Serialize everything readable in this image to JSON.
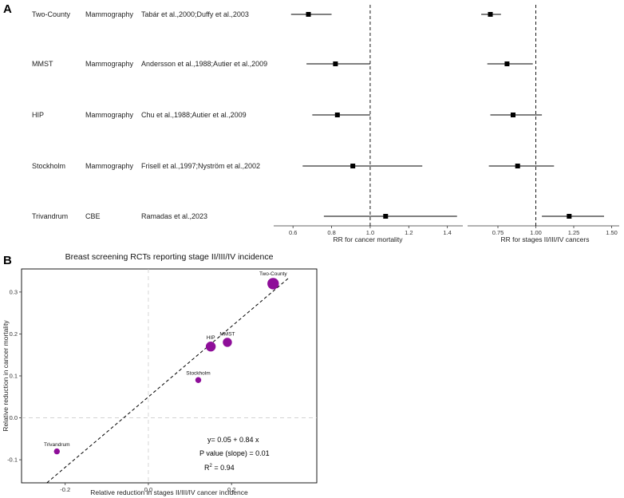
{
  "panel_a_label": "A",
  "panel_b_label": "B",
  "chart_data": [
    {
      "type": "forest",
      "rows": [
        {
          "trial": "Two-County",
          "method": "Mammography",
          "refs": "Tabár et al.,2000;Duffy et al.,2003",
          "rr": 0.68,
          "lo": 0.59,
          "hi": 0.8
        },
        {
          "trial": "MMST",
          "method": "Mammography",
          "refs": "Andersson et al.,1988;Autier et al.,2009",
          "rr": 0.82,
          "lo": 0.67,
          "hi": 1.0
        },
        {
          "trial": "HIP",
          "method": "Mammography",
          "refs": "Chu et al.,1988;Autier et al.,2009",
          "rr": 0.83,
          "lo": 0.7,
          "hi": 1.0
        },
        {
          "trial": "Stockholm",
          "method": "Mammography",
          "refs": "Frisell et al.,1997;Nyström et al.,2002",
          "rr": 0.91,
          "lo": 0.65,
          "hi": 1.27
        },
        {
          "trial": "Trivandrum",
          "method": "CBE",
          "refs": "Ramadas et al.,2023",
          "rr": 1.08,
          "lo": 0.76,
          "hi": 1.45
        }
      ],
      "xlabel": "RR for cancer mortality",
      "xlim": [
        0.5,
        1.48
      ],
      "ticks": [
        0.6,
        0.8,
        1.0,
        1.2,
        1.4
      ],
      "tick_labels": [
        "0.6",
        "0.8",
        "1.0",
        "1.2",
        "1.4"
      ],
      "reference_line": 1.0
    },
    {
      "type": "forest",
      "rows": [
        {
          "trial": "Two-County",
          "rr": 0.7,
          "lo": 0.64,
          "hi": 0.77
        },
        {
          "trial": "MMST",
          "rr": 0.81,
          "lo": 0.68,
          "hi": 0.98
        },
        {
          "trial": "HIP",
          "rr": 0.85,
          "lo": 0.7,
          "hi": 1.04
        },
        {
          "trial": "Stockholm",
          "rr": 0.88,
          "lo": 0.69,
          "hi": 1.12
        },
        {
          "trial": "Trivandrum",
          "rr": 1.22,
          "lo": 1.04,
          "hi": 1.45
        }
      ],
      "xlabel": "RR for stages II/III/IV cancers",
      "xlim": [
        0.55,
        1.55
      ],
      "ticks": [
        0.75,
        1.0,
        1.25,
        1.5
      ],
      "tick_labels": [
        "0.75",
        "1.00",
        "1.25",
        "1.50"
      ],
      "reference_line": 1.0
    },
    {
      "type": "scatter",
      "title": "Breast screening RCTs reporting stage II/III/IV incidence",
      "xlabel": "Relative reduction in stages II/III/IV cancer incidence",
      "ylabel": "Relative reduction in cancer mortality",
      "xlim": [
        -0.305,
        0.405
      ],
      "ylim": [
        -0.155,
        0.355
      ],
      "xticks": [
        -0.2,
        0.0,
        0.2
      ],
      "xtick_labels": [
        "-0.2",
        "0.0",
        "0.2"
      ],
      "yticks": [
        -0.1,
        0.0,
        0.1,
        0.2,
        0.3
      ],
      "ytick_labels": [
        "-0.1",
        "0.0",
        "0.1",
        "0.2",
        "0.3"
      ],
      "points": [
        {
          "name": "Two-County",
          "x": 0.3,
          "y": 0.32,
          "weight": 5
        },
        {
          "name": "MMST",
          "x": 0.19,
          "y": 0.18,
          "weight": 3.5
        },
        {
          "name": "HIP",
          "x": 0.15,
          "y": 0.17,
          "weight": 4
        },
        {
          "name": "Stockholm",
          "x": 0.12,
          "y": 0.09,
          "weight": 1.5
        },
        {
          "name": "Trivandrum",
          "x": -0.22,
          "y": -0.08,
          "weight": 1.5
        }
      ],
      "fit": {
        "intercept": 0.05,
        "slope": 0.84
      },
      "annotations": {
        "equation": "y= 0.05 + 0.84 x",
        "pvalue": "P value (slope) =  0.01",
        "r2_label": "R",
        "r2_sup": "2",
        "r2_value": " =  0.94"
      },
      "point_color": "#8e0e99"
    }
  ]
}
